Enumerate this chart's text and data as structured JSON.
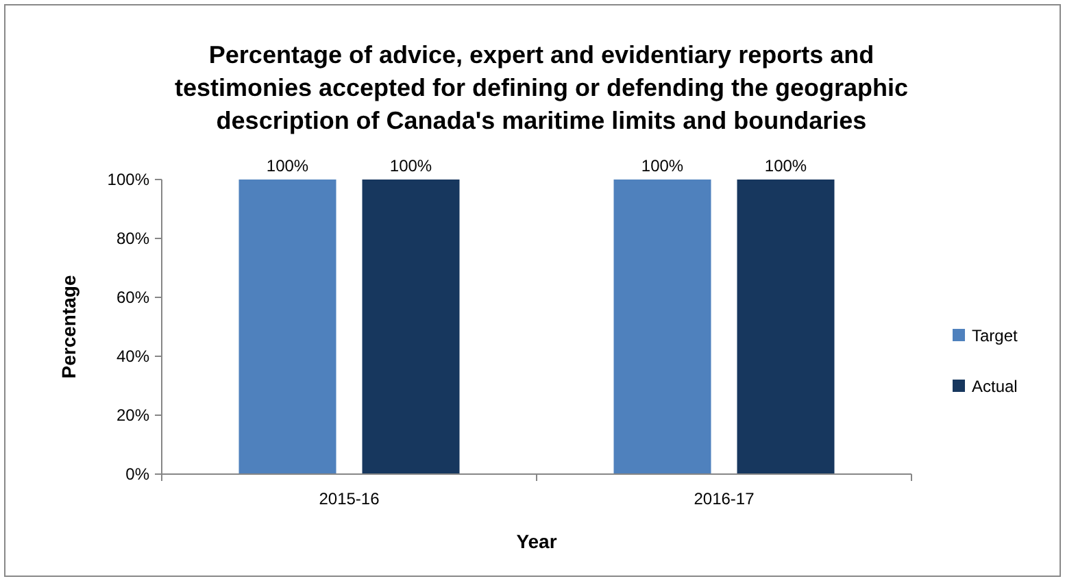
{
  "chart_data": {
    "type": "bar",
    "title": "Percentage of advice, expert and evidentiary reports and testimonies accepted for defining or defending the geographic description of Canada's maritime limits and boundaries",
    "xlabel": "Year",
    "ylabel": "Percentage",
    "categories": [
      "2015-16",
      "2016-17"
    ],
    "series": [
      {
        "name": "Target",
        "color": "#4f81bd",
        "values": [
          100,
          100
        ],
        "value_labels": [
          "100%",
          "100%"
        ]
      },
      {
        "name": "Actual",
        "color": "#17375e",
        "values": [
          100,
          100
        ],
        "value_labels": [
          "100%",
          "100%"
        ]
      }
    ],
    "ylim": [
      0,
      100
    ],
    "yticks": [
      {
        "value": 0,
        "label": "0%"
      },
      {
        "value": 20,
        "label": "20%"
      },
      {
        "value": 40,
        "label": "40%"
      },
      {
        "value": 60,
        "label": "60%"
      },
      {
        "value": 80,
        "label": "80%"
      },
      {
        "value": 100,
        "label": "100%"
      }
    ],
    "grid": false,
    "legend": "right"
  }
}
